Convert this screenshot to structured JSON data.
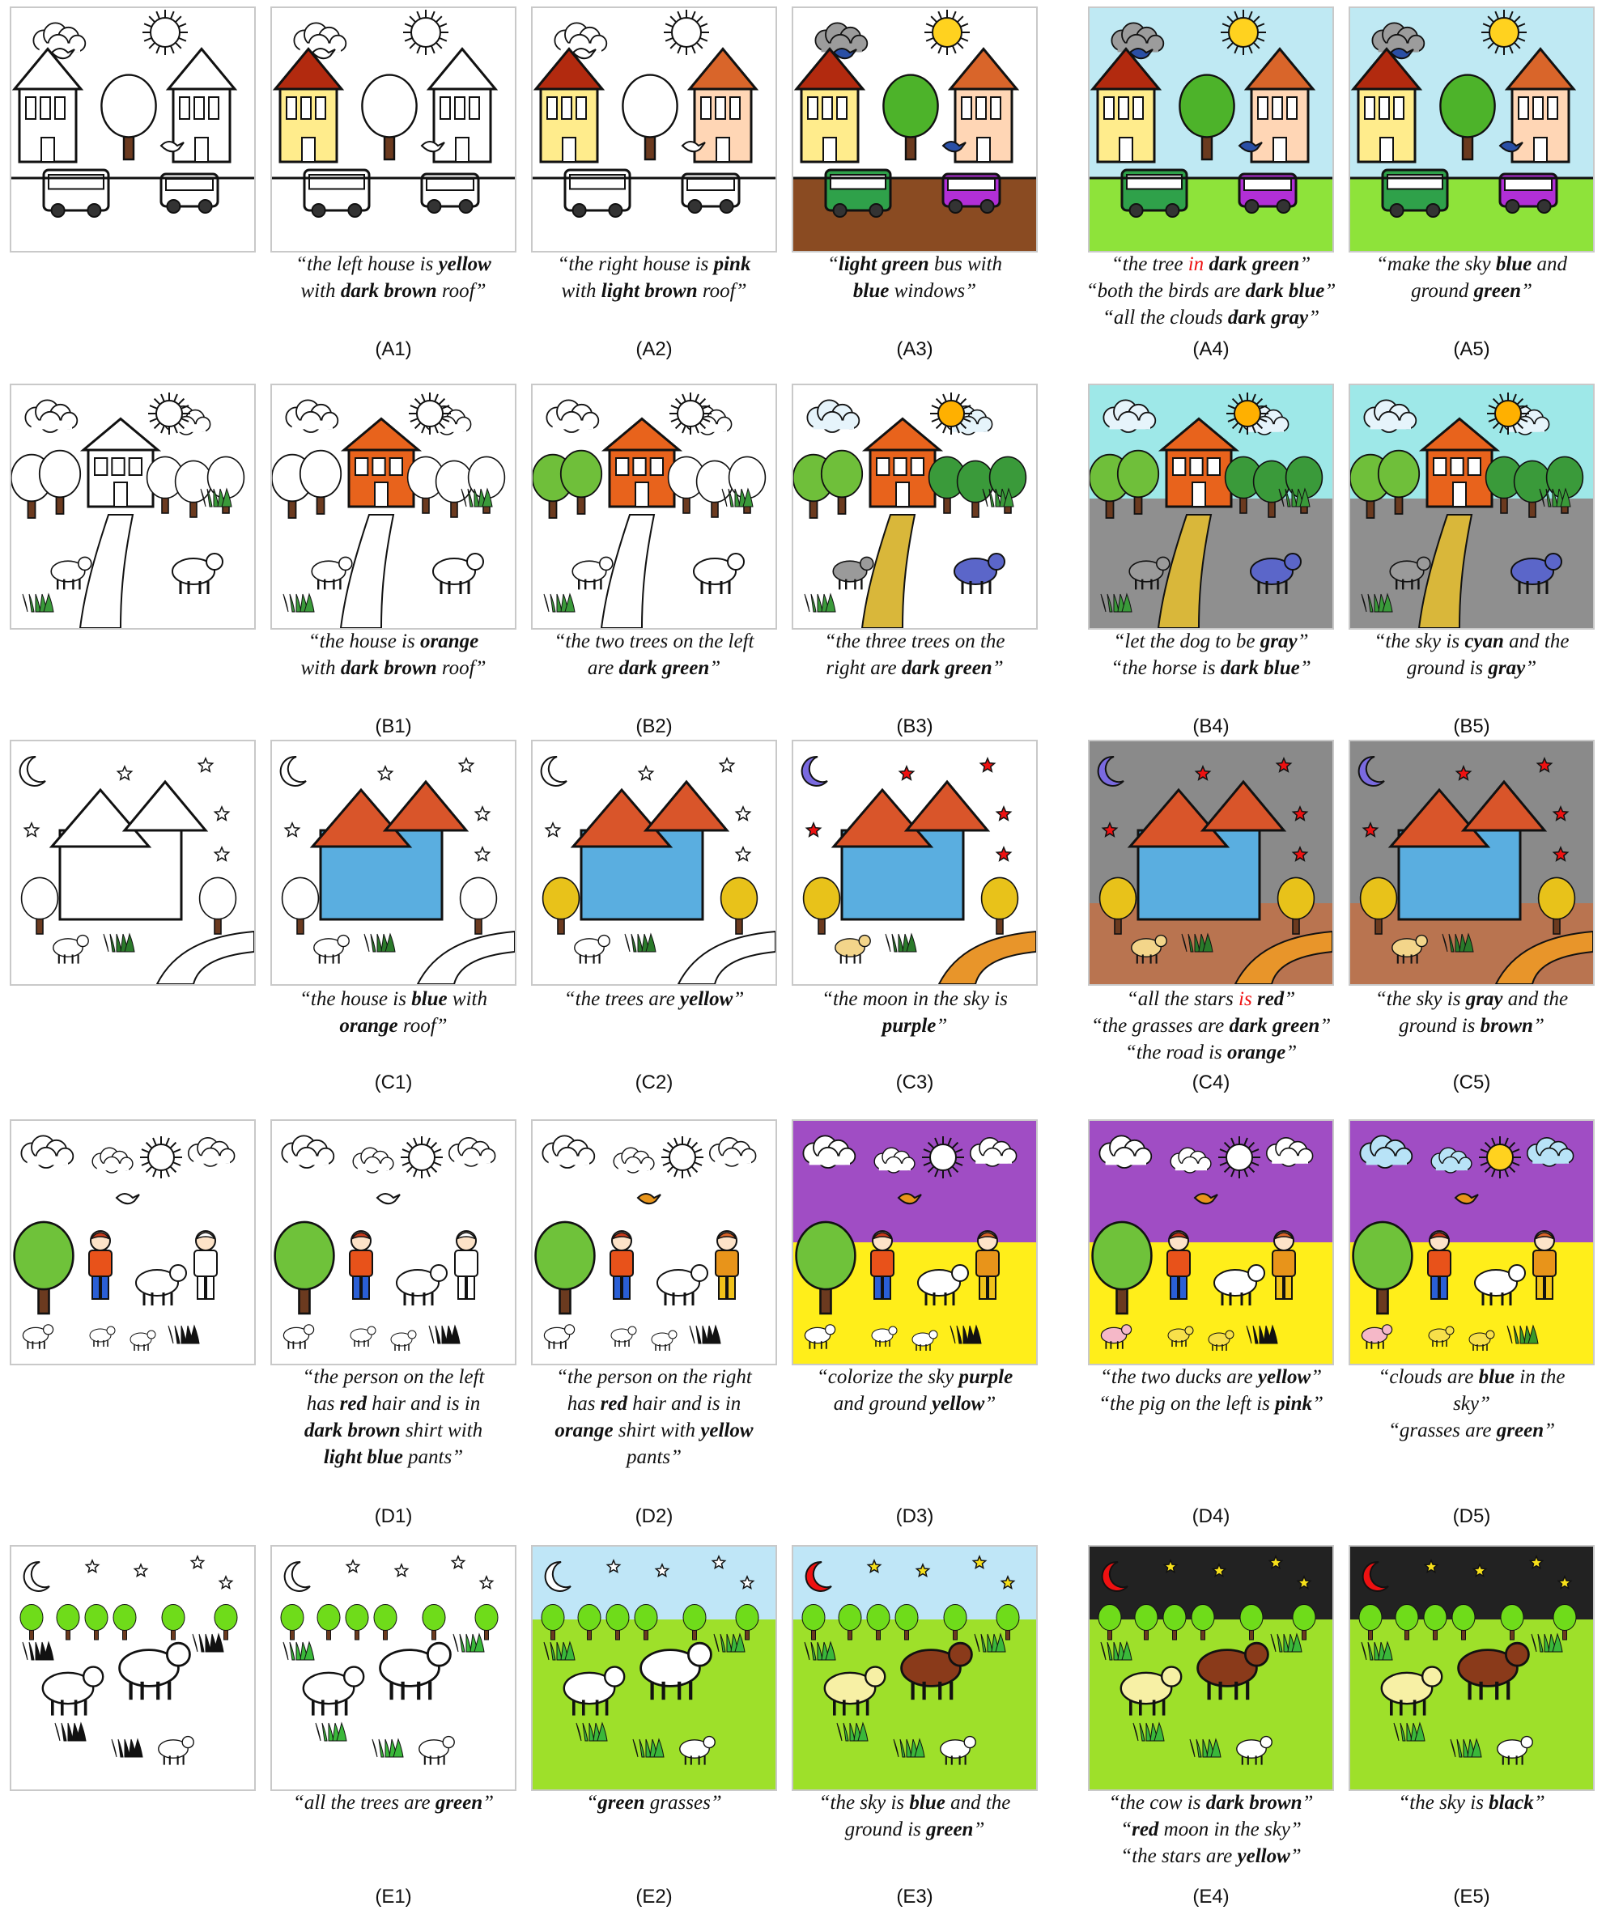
{
  "figure": {
    "row_A": {
      "labels": [
        "(A1)",
        "(A2)",
        "(A3)",
        "(A4)",
        "(A5)"
      ],
      "captions": [
        [
          [
            "“the left house is ",
            ""
          ],
          [
            "yellow",
            "b"
          ],
          [
            "",
            ""
          ],
          [
            "\nwith ",
            ""
          ],
          [
            "dark brown",
            "b"
          ],
          [
            " roof”",
            ""
          ]
        ],
        [
          [
            "“the right house is ",
            ""
          ],
          [
            "pink",
            "b"
          ],
          [
            "\nwith ",
            ""
          ],
          [
            "light brown",
            "b"
          ],
          [
            " roof”",
            ""
          ]
        ],
        [
          [
            "“",
            ""
          ],
          [
            "light green",
            "b"
          ],
          [
            " bus with\n",
            ""
          ],
          [
            "blue",
            "b"
          ],
          [
            " windows”",
            ""
          ]
        ],
        [
          [
            "“the tree ",
            ""
          ],
          [
            "in",
            "red"
          ],
          [
            " ",
            ""
          ],
          [
            "dark green",
            "b"
          ],
          [
            "”\n“both the birds are ",
            ""
          ],
          [
            "dark blue",
            "b"
          ],
          [
            "”\n“all the clouds ",
            ""
          ],
          [
            "dark gray",
            "b"
          ],
          [
            "”",
            ""
          ]
        ],
        [
          [
            "“make the sky ",
            ""
          ],
          [
            "blue",
            "b"
          ],
          [
            " and\nground ",
            ""
          ],
          [
            "green",
            "b"
          ],
          [
            "”",
            ""
          ]
        ]
      ]
    },
    "row_B": {
      "labels": [
        "(B1)",
        "(B2)",
        "(B3)",
        "(B4)",
        "(B5)"
      ],
      "captions": [
        [
          [
            "“the house is ",
            ""
          ],
          [
            "orange",
            "b"
          ],
          [
            "\nwith ",
            ""
          ],
          [
            "dark brown",
            "b"
          ],
          [
            " roof”",
            ""
          ]
        ],
        [
          [
            "“the two trees on the left\nare ",
            ""
          ],
          [
            "dark green",
            "b"
          ],
          [
            "”",
            ""
          ]
        ],
        [
          [
            "“the three trees on the\nright are ",
            ""
          ],
          [
            "dark green",
            "b"
          ],
          [
            "”",
            ""
          ]
        ],
        [
          [
            "“let the dog to be ",
            ""
          ],
          [
            "gray",
            "b"
          ],
          [
            "”\n“the horse is ",
            ""
          ],
          [
            "dark blue",
            "b"
          ],
          [
            "”",
            ""
          ]
        ],
        [
          [
            "“the sky is ",
            ""
          ],
          [
            "cyan",
            "b"
          ],
          [
            " and the\nground is ",
            ""
          ],
          [
            "gray",
            "b"
          ],
          [
            "”",
            ""
          ]
        ]
      ]
    },
    "row_C": {
      "labels": [
        "(C1)",
        "(C2)",
        "(C3)",
        "(C4)",
        "(C5)"
      ],
      "captions": [
        [
          [
            "“the house is ",
            ""
          ],
          [
            "blue",
            "b"
          ],
          [
            " with\n",
            ""
          ],
          [
            "orange",
            "b"
          ],
          [
            " roof”",
            ""
          ]
        ],
        [
          [
            "“the trees are ",
            ""
          ],
          [
            "yellow",
            "b"
          ],
          [
            "”",
            ""
          ]
        ],
        [
          [
            "“the moon in the sky is\n",
            ""
          ],
          [
            "purple",
            "b"
          ],
          [
            "”",
            ""
          ]
        ],
        [
          [
            "“all the stars ",
            ""
          ],
          [
            "is",
            "red"
          ],
          [
            " ",
            ""
          ],
          [
            "red",
            "b"
          ],
          [
            "”\n“the grasses are ",
            ""
          ],
          [
            "dark green",
            "b"
          ],
          [
            "”\n“the road is ",
            ""
          ],
          [
            "orange",
            "b"
          ],
          [
            "”",
            ""
          ]
        ],
        [
          [
            "“the sky is ",
            ""
          ],
          [
            "gray",
            "b"
          ],
          [
            " and the\nground is ",
            ""
          ],
          [
            "brown",
            "b"
          ],
          [
            "”",
            ""
          ]
        ]
      ]
    },
    "row_D": {
      "labels": [
        "(D1)",
        "(D2)",
        "(D3)",
        "(D4)",
        "(D5)"
      ],
      "captions": [
        [
          [
            "“the person on the left\nhas ",
            ""
          ],
          [
            "red",
            "b"
          ],
          [
            " hair and is in\n",
            ""
          ],
          [
            "dark brown",
            "b"
          ],
          [
            " shirt with\n",
            ""
          ],
          [
            "light blue",
            "b"
          ],
          [
            " pants”",
            ""
          ]
        ],
        [
          [
            "“the person on the right\nhas ",
            ""
          ],
          [
            "red",
            "b"
          ],
          [
            " hair and is in\n",
            ""
          ],
          [
            "orange",
            "b"
          ],
          [
            " shirt with ",
            ""
          ],
          [
            "yellow",
            "b"
          ],
          [
            "\npants”",
            ""
          ]
        ],
        [
          [
            "“colorize the sky ",
            ""
          ],
          [
            "purple",
            "b"
          ],
          [
            "\nand ground ",
            ""
          ],
          [
            "yellow",
            "b"
          ],
          [
            "”",
            ""
          ]
        ],
        [
          [
            "“the two ducks are ",
            ""
          ],
          [
            "yellow",
            "b"
          ],
          [
            "”\n“the pig on the left is ",
            ""
          ],
          [
            "pink",
            "b"
          ],
          [
            "”",
            ""
          ]
        ],
        [
          [
            "“clouds are ",
            ""
          ],
          [
            "blue",
            "b"
          ],
          [
            " in the\nsky”\n“grasses are ",
            ""
          ],
          [
            "green",
            "b"
          ],
          [
            "”",
            ""
          ]
        ]
      ]
    },
    "row_E": {
      "labels": [
        "(E1)",
        "(E2)",
        "(E3)",
        "(E4)",
        "(E5)"
      ],
      "captions": [
        [
          [
            "“all the trees are ",
            ""
          ],
          [
            "green",
            "b"
          ],
          [
            "”",
            ""
          ]
        ],
        [
          [
            "“",
            ""
          ],
          [
            "green",
            "b"
          ],
          [
            " grasses”",
            ""
          ]
        ],
        [
          [
            "“the sky is ",
            ""
          ],
          [
            "blue",
            "b"
          ],
          [
            " and the\nground is ",
            ""
          ],
          [
            "green",
            "b"
          ],
          [
            "”",
            ""
          ]
        ],
        [
          [
            "“the cow is ",
            ""
          ],
          [
            "dark brown",
            "b"
          ],
          [
            "”\n“",
            ""
          ],
          [
            "red",
            "b"
          ],
          [
            " moon in the sky”\n“the stars are ",
            ""
          ],
          [
            "yellow",
            "b"
          ],
          [
            "”",
            ""
          ]
        ],
        [
          [
            "“the sky is ",
            ""
          ],
          [
            "black",
            "b"
          ],
          [
            "”",
            ""
          ]
        ]
      ]
    },
    "ellipsis": "..."
  }
}
